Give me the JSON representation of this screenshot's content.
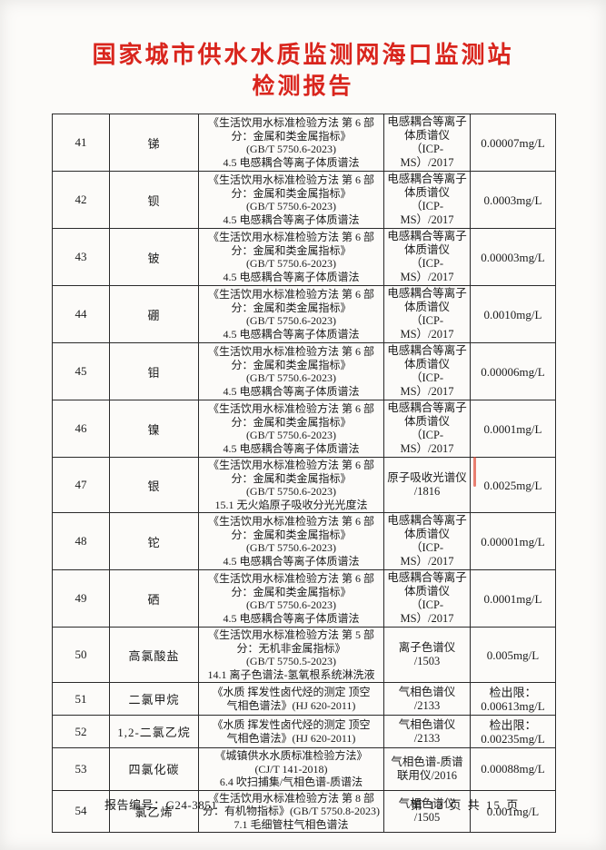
{
  "page": {
    "title_line1": "国家城市供水水质监测网海口监测站",
    "title_line2": "检测报告",
    "title_color": "#d9251d"
  },
  "footer": {
    "report_no": "报告编号：G24-3851",
    "page_info": "第 12 页  共 15 页"
  },
  "table": {
    "rows": [
      {
        "no": "41",
        "name": "锑",
        "method": "《生活饮用水标准检验方法 第 6 部\n分：金属和类金属指标》\n(GB/T 5750.6-2023)\n4.5  电感耦合等离子体质谱法",
        "instrument": "电感耦合等离子\n体质谱仪\n（ICP-MS）/2017",
        "limit": "0.00007mg/L",
        "h": "h60"
      },
      {
        "no": "42",
        "name": "钡",
        "method": "《生活饮用水标准检验方法 第 6 部\n分：金属和类金属指标》\n(GB/T 5750.6-2023)\n4.5  电感耦合等离子体质谱法",
        "instrument": "电感耦合等离子\n体质谱仪\n（ICP-MS）/2017",
        "limit": "0.0003mg/L",
        "h": "h60"
      },
      {
        "no": "43",
        "name": "铍",
        "method": "《生活饮用水标准检验方法 第 6 部\n分：金属和类金属指标》\n(GB/T 5750.6-2023)\n4.5  电感耦合等离子体质谱法",
        "instrument": "电感耦合等离子\n体质谱仪\n（ICP-MS）/2017",
        "limit": "0.00003mg/L",
        "h": "h60"
      },
      {
        "no": "44",
        "name": "硼",
        "method": "《生活饮用水标准检验方法 第 6 部\n分：金属和类金属指标》\n(GB/T 5750.6-2023)\n4.5  电感耦合等离子体质谱法",
        "instrument": "电感耦合等离子\n体质谱仪\n（ICP-MS）/2017",
        "limit": "0.0010mg/L",
        "h": "h60"
      },
      {
        "no": "45",
        "name": "钼",
        "method": "《生活饮用水标准检验方法 第 6 部\n分：金属和类金属指标》\n(GB/T 5750.6-2023)\n4.5  电感耦合等离子体质谱法",
        "instrument": "电感耦合等离子\n体质谱仪\n（ICP-MS）/2017",
        "limit": "0.00006mg/L",
        "h": "h60"
      },
      {
        "no": "46",
        "name": "镍",
        "method": "《生活饮用水标准检验方法 第 6 部\n分：金属和类金属指标》\n(GB/T 5750.6-2023)\n4.5  电感耦合等离子体质谱法",
        "instrument": "电感耦合等离子\n体质谱仪\n（ICP-MS）/2017",
        "limit": "0.0001mg/L",
        "h": "h60"
      },
      {
        "no": "47",
        "name": "银",
        "method": "《生活饮用水标准检验方法 第 6 部\n分：金属和类金属指标》\n(GB/T 5750.6-2023)\n15.1  无火焰原子吸收分光光度法",
        "instrument": "原子吸收光谱仪\n/1816",
        "limit": "0.0025mg/L",
        "h": "h60"
      },
      {
        "no": "48",
        "name": "铊",
        "method": "《生活饮用水标准检验方法 第 6 部\n分：金属和类金属指标》\n(GB/T 5750.6-2023)\n4.5  电感耦合等离子体质谱法",
        "instrument": "电感耦合等离子\n体质谱仪\n（ICP-MS）/2017",
        "limit": "0.00001mg/L",
        "h": "h60"
      },
      {
        "no": "49",
        "name": "硒",
        "method": "《生活饮用水标准检验方法 第 6 部\n分：金属和类金属指标》\n(GB/T 5750.6-2023)\n4.5  电感耦合等离子体质谱法",
        "instrument": "电感耦合等离子\n体质谱仪\n（ICP-MS）/2017",
        "limit": "0.0001mg/L",
        "h": "h60"
      },
      {
        "no": "50",
        "name": "高氯酸盐",
        "method": "《生活饮用水标准检验方法 第 5 部\n分：无机非金属指标》\n(GB/T 5750.5-2023)\n14.1  离子色谱法-氢氧根系统淋洗液",
        "instrument": "离子色谱仪\n/1503",
        "limit": "0.005mg/L",
        "h": "h60"
      },
      {
        "no": "51",
        "name": "二氯甲烷",
        "method": "《水质  挥发性卤代烃的测定  顶空\n气相色谱法》(HJ 620-2011)",
        "instrument": "气相色谱仪\n/2133",
        "limit": "检出限：\n0.00613mg/L",
        "h": "h36"
      },
      {
        "no": "52",
        "name": "1,2-二氯乙烷",
        "method": "《水质  挥发性卤代烃的测定  顶空\n气相色谱法》(HJ 620-2011)",
        "instrument": "气相色谱仪\n/2133",
        "limit": "检出限：\n0.00235mg/L",
        "h": "h36"
      },
      {
        "no": "53",
        "name": "四氯化碳",
        "method": "《城镇供水水质标准检验方法》\n(CJ/T 141-2018)\n6.4  吹扫捕集/气相色谱-质谱法",
        "instrument": "气相色谱-质谱\n联用仪/2016",
        "limit": "0.00088mg/L",
        "h": "h44"
      },
      {
        "no": "54",
        "name": "氯乙烯",
        "method": "《生活饮用水标准检验方法 第 8 部\n分：有机物指标》(GB/T 5750.8-2023)\n7.1  毛细管柱气相色谱法",
        "instrument": "气相色谱仪\n/1505",
        "limit": "0.001mg/L",
        "h": "h44"
      }
    ]
  }
}
